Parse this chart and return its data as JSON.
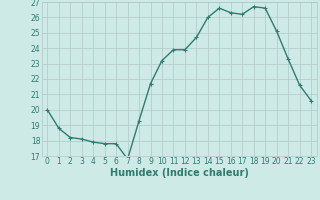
{
  "x": [
    0,
    1,
    2,
    3,
    4,
    5,
    6,
    7,
    8,
    9,
    10,
    11,
    12,
    13,
    14,
    15,
    16,
    17,
    18,
    19,
    20,
    21,
    22,
    23
  ],
  "y": [
    20,
    18.8,
    18.2,
    18.1,
    17.9,
    17.8,
    17.8,
    16.8,
    19.3,
    21.7,
    23.2,
    23.9,
    23.9,
    24.7,
    26.0,
    26.6,
    26.3,
    26.2,
    26.7,
    26.6,
    25.1,
    23.3,
    21.6,
    20.6
  ],
  "line_color": "#2e7d6e",
  "marker": "+",
  "markersize": 3,
  "linewidth": 1.0,
  "xlabel": "Humidex (Indice chaleur)",
  "ylim": [
    17,
    27
  ],
  "yticks": [
    17,
    18,
    19,
    20,
    21,
    22,
    23,
    24,
    25,
    26,
    27
  ],
  "xticks": [
    0,
    1,
    2,
    3,
    4,
    5,
    6,
    7,
    8,
    9,
    10,
    11,
    12,
    13,
    14,
    15,
    16,
    17,
    18,
    19,
    20,
    21,
    22,
    23
  ],
  "bg_color": "#ceeae7",
  "grid_color": "#b0c8c5",
  "font_color": "#2e7d6e",
  "xlabel_fontsize": 7,
  "tick_fontsize": 5.5
}
